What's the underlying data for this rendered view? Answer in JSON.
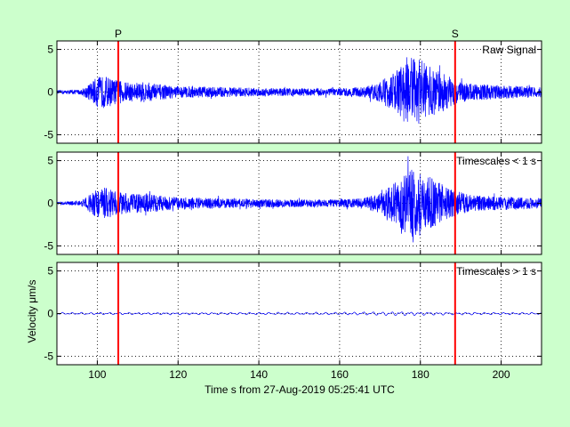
{
  "figure": {
    "background": "#ccffcc",
    "xlabel": "Time s from 27-Aug-2019 05:25:41 UTC",
    "ylabel": "Velocity μm/s"
  },
  "chart_data": {
    "type": "line",
    "xlim": [
      90,
      210
    ],
    "ylim": [
      -6,
      6
    ],
    "x_ticks": [
      100,
      120,
      140,
      160,
      180,
      200
    ],
    "y_ticks": [
      -5,
      0,
      5
    ],
    "grid": true,
    "trace_color": "#0000ff",
    "phase_color": "#ff0000",
    "phases": [
      {
        "label": "P",
        "x": 105.2
      },
      {
        "label": "S",
        "x": 188.6
      }
    ],
    "panels": [
      {
        "label": "Raw Signal",
        "envelope": [
          [
            90,
            0.2
          ],
          [
            96,
            0.3
          ],
          [
            98,
            1.0
          ],
          [
            100,
            1.8
          ],
          [
            102,
            1.9
          ],
          [
            104,
            1.5
          ],
          [
            106,
            1.3
          ],
          [
            108,
            1.1
          ],
          [
            112,
            1.2
          ],
          [
            116,
            0.9
          ],
          [
            120,
            0.7
          ],
          [
            130,
            0.6
          ],
          [
            140,
            0.5
          ],
          [
            150,
            0.45
          ],
          [
            160,
            0.45
          ],
          [
            166,
            0.6
          ],
          [
            170,
            1.2
          ],
          [
            174,
            2.5
          ],
          [
            176,
            3.5
          ],
          [
            178,
            4.0
          ],
          [
            180,
            3.8
          ],
          [
            182,
            3.2
          ],
          [
            184,
            2.6
          ],
          [
            188,
            1.6
          ],
          [
            192,
            1.0
          ],
          [
            196,
            0.9
          ],
          [
            200,
            0.8
          ],
          [
            206,
            0.7
          ],
          [
            210,
            0.6
          ]
        ]
      },
      {
        "label": "Timescales < 1 s",
        "envelope": [
          [
            90,
            0.15
          ],
          [
            96,
            0.3
          ],
          [
            98,
            1.0
          ],
          [
            100,
            1.8
          ],
          [
            102,
            1.9
          ],
          [
            104,
            1.5
          ],
          [
            106,
            1.3
          ],
          [
            108,
            1.1
          ],
          [
            112,
            1.2
          ],
          [
            116,
            0.9
          ],
          [
            120,
            0.7
          ],
          [
            130,
            0.6
          ],
          [
            140,
            0.5
          ],
          [
            150,
            0.45
          ],
          [
            160,
            0.45
          ],
          [
            166,
            0.6
          ],
          [
            170,
            1.2
          ],
          [
            174,
            2.5
          ],
          [
            176,
            3.5
          ],
          [
            178,
            4.0
          ],
          [
            180,
            3.8
          ],
          [
            182,
            3.2
          ],
          [
            184,
            2.6
          ],
          [
            188,
            1.6
          ],
          [
            192,
            1.0
          ],
          [
            196,
            0.9
          ],
          [
            200,
            0.8
          ],
          [
            206,
            0.7
          ],
          [
            210,
            0.6
          ]
        ]
      },
      {
        "label": "Timescales > 1 s",
        "envelope": [
          [
            90,
            0.12
          ],
          [
            120,
            0.12
          ],
          [
            160,
            0.15
          ],
          [
            176,
            0.25
          ],
          [
            180,
            0.2
          ],
          [
            190,
            0.15
          ],
          [
            210,
            0.12
          ]
        ]
      }
    ]
  }
}
